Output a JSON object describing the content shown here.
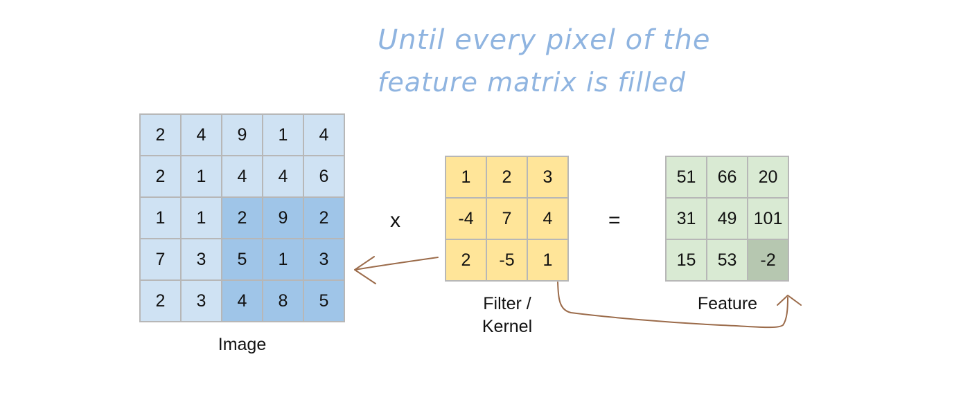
{
  "annotation": {
    "line1": "Until every pixel of the",
    "line2": "feature matrix is filled"
  },
  "image": {
    "label": "Image",
    "values": [
      [
        "2",
        "4",
        "9",
        "1",
        "4"
      ],
      [
        "2",
        "1",
        "4",
        "4",
        "6"
      ],
      [
        "1",
        "1",
        "2",
        "9",
        "2"
      ],
      [
        "7",
        "3",
        "5",
        "1",
        "3"
      ],
      [
        "2",
        "3",
        "4",
        "8",
        "5"
      ]
    ],
    "highlight": {
      "rows": [
        2,
        4
      ],
      "cols": [
        2,
        4
      ]
    }
  },
  "kernel": {
    "label_line1": "Filter /",
    "label_line2": "Kernel",
    "values": [
      [
        "1",
        "2",
        "3"
      ],
      [
        "-4",
        "7",
        "4"
      ],
      [
        "2",
        "-5",
        "1"
      ]
    ]
  },
  "feature": {
    "label": "Feature",
    "values": [
      [
        "51",
        "66",
        "20"
      ],
      [
        "31",
        "49",
        "101"
      ],
      [
        "15",
        "53",
        "-2"
      ]
    ],
    "highlight": {
      "row": 2,
      "col": 2
    }
  },
  "operators": {
    "multiply": "x",
    "equals": "="
  },
  "colors": {
    "image_cell": "#cfe2f3",
    "image_highlight": "#9fc5e8",
    "kernel_cell": "#ffe599",
    "feature_cell": "#d9ead3",
    "feature_highlight": "#b6c7b0",
    "annotation_text": "#8fb4e0",
    "arrow": "#9b6b4a"
  }
}
